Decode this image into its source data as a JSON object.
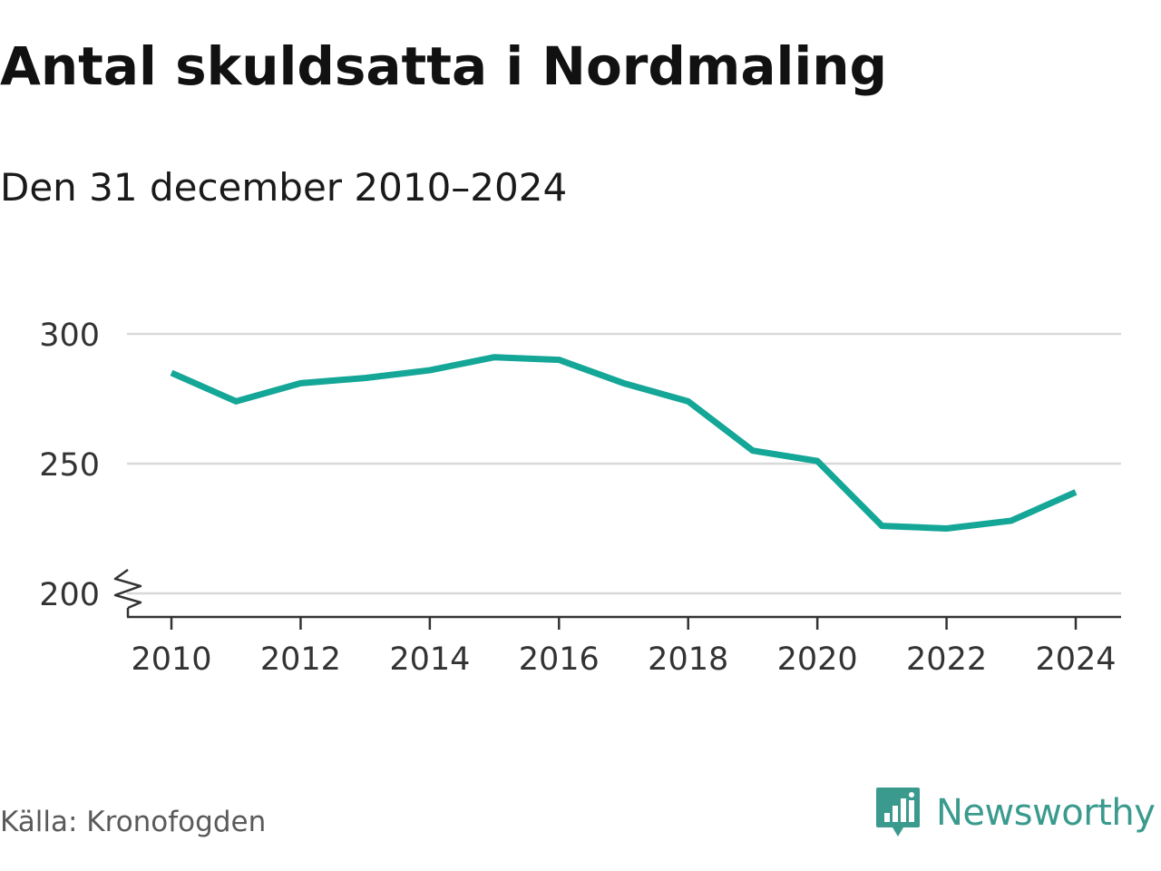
{
  "chart_data": {
    "type": "line",
    "title": "Antal skuldsatta i Nordmaling",
    "subtitle": "Den 31 december 2010–2024",
    "x": [
      2010,
      2011,
      2012,
      2013,
      2014,
      2015,
      2016,
      2017,
      2018,
      2019,
      2020,
      2021,
      2022,
      2023,
      2024
    ],
    "series": [
      {
        "values": [
          285,
          274,
          281,
          283,
          286,
          291,
          290,
          281,
          274,
          255,
          251,
          226,
          225,
          228,
          239
        ]
      }
    ],
    "xlabel": "",
    "ylabel": "",
    "xticks": [
      2010,
      2012,
      2014,
      2016,
      2018,
      2020,
      2022,
      2024
    ],
    "yticks": [
      200,
      250,
      300
    ],
    "ylim": [
      200,
      300
    ],
    "xlim": [
      2010,
      2024
    ],
    "grid": true,
    "axis_break": true,
    "line_color": "#14a697",
    "grid_color": "#d9d9d9",
    "axis_color": "#333333"
  },
  "footer": {
    "source": "Källa: Kronofogden",
    "brand": "Newsworthy",
    "brand_color": "#3a9a8e",
    "brand_icon": "newsworthy-logo-icon"
  }
}
